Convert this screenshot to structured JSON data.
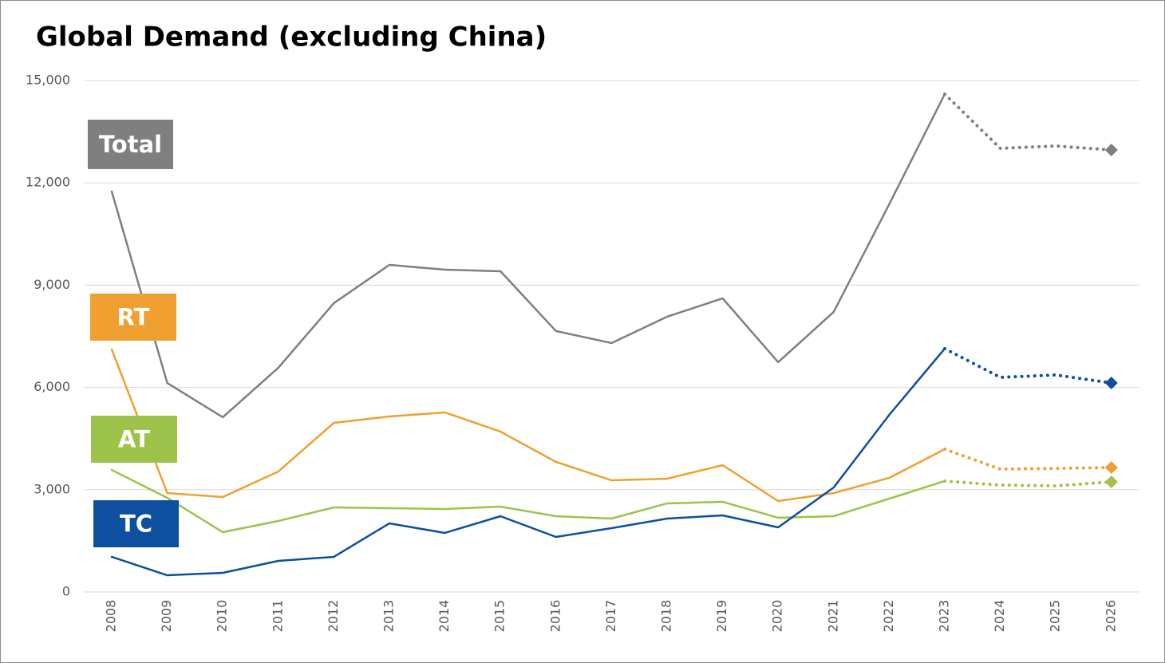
{
  "chart_data": {
    "type": "line",
    "title": "Global Demand (excluding China)",
    "categories": [
      "2008",
      "2009",
      "2010",
      "2011",
      "2012",
      "2013",
      "2014",
      "2015",
      "2016",
      "2017",
      "2018",
      "2019",
      "2020",
      "2021",
      "2022",
      "2023",
      "2024",
      "2025",
      "2026"
    ],
    "dotted_from": "2023",
    "series": [
      {
        "name": "Total",
        "color": "#7f7f7f",
        "values": [
          11750,
          6130,
          5125,
          6576,
          8472,
          9595,
          9455,
          9408,
          7653,
          7302,
          8074,
          8612,
          6740,
          8214,
          11374,
          14604,
          13012,
          13082,
          12965
        ]
      },
      {
        "name": "RT",
        "color": "#f0a030",
        "values": [
          7114,
          2902,
          2785,
          3534,
          4961,
          5149,
          5266,
          4704,
          3815,
          3276,
          3323,
          3721,
          2668,
          2902,
          3347,
          4189,
          3604,
          3627,
          3651
        ]
      },
      {
        "name": "AT",
        "color": "#9dc34a",
        "values": [
          3581,
          2762,
          1755,
          2083,
          2481,
          2457,
          2434,
          2504,
          2223,
          2153,
          2598,
          2645,
          2177,
          2223,
          2738,
          3253,
          3136,
          3113,
          3230
        ]
      },
      {
        "name": "TC",
        "color": "#0e4fa0",
        "values": [
          1030,
          491,
          562,
          913,
          1030,
          2013,
          1732,
          2223,
          1615,
          1872,
          2153,
          2247,
          1896,
          3066,
          5195,
          7138,
          6295,
          6366,
          6131
        ]
      }
    ],
    "ylim": [
      0,
      15000
    ],
    "yticks": [
      0,
      {
        "value": 3000,
        "label": "3,000"
      },
      {
        "value": 6000,
        "label": "6,000"
      },
      {
        "value": 9000,
        "label": "9,000"
      },
      {
        "value": 12000,
        "label": "12,000"
      },
      {
        "value": 15000,
        "label": "15,000"
      }
    ],
    "grid": true
  }
}
